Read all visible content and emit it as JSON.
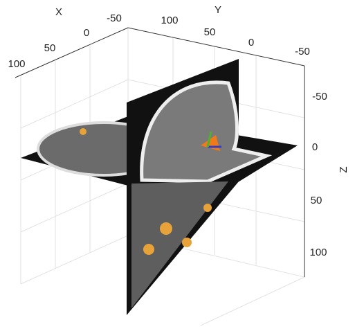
{
  "axes": {
    "x": {
      "label": "X",
      "ticks": [
        "100",
        "50",
        "0",
        "-50"
      ]
    },
    "y": {
      "label": "Y",
      "ticks": [
        "100",
        "50",
        "0",
        "-50"
      ]
    },
    "z": {
      "label": "Z",
      "ticks": [
        "-50",
        "0",
        "50",
        "100"
      ]
    }
  }
}
